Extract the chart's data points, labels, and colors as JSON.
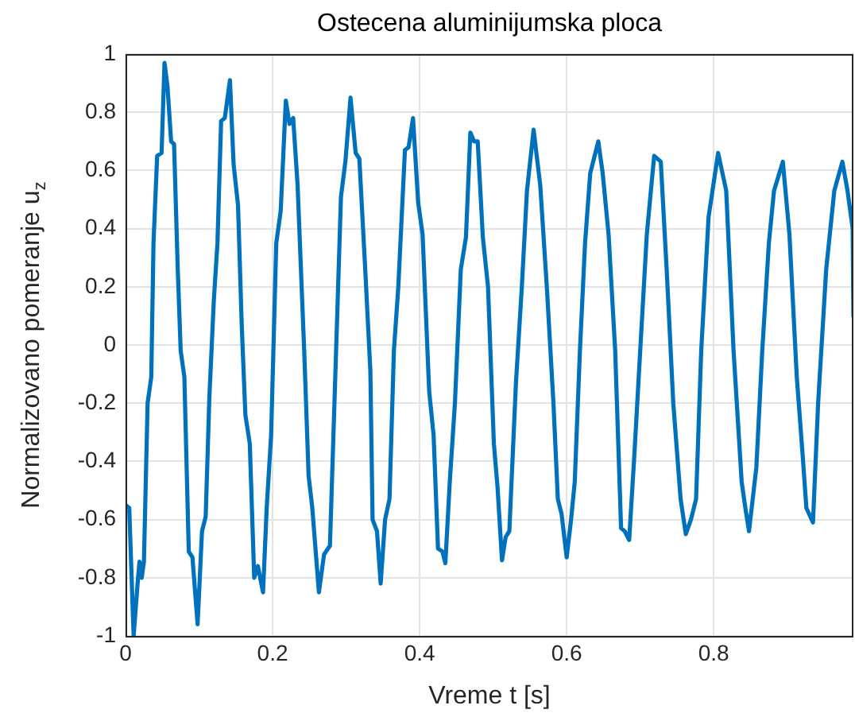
{
  "chart_data": {
    "type": "line",
    "title": "Ostecena aluminijumska ploca",
    "xlabel": "Vreme t [s]",
    "ylabel": "Normalizovano pomeranje u$_{z}$",
    "xlim": [
      0,
      0.99
    ],
    "xticks": [
      0,
      0.2,
      0.4,
      0.6,
      0.8
    ],
    "ylim": [
      -1,
      1
    ],
    "yticks": [
      -1,
      -0.8,
      -0.6,
      -0.4,
      -0.2,
      0,
      0.2,
      0.4,
      0.6,
      0.8,
      1
    ],
    "grid": true,
    "marker": "none",
    "line_style": "solid",
    "series": [
      {
        "color": "#0072bd",
        "x": [
          0,
          0.005,
          0.011,
          0.017,
          0.019,
          0.022,
          0.025,
          0.03,
          0.035,
          0.038,
          0.043,
          0.049,
          0.053,
          0.057,
          0.062,
          0.066,
          0.071,
          0.075,
          0.08,
          0.086,
          0.091,
          0.098,
          0.104,
          0.109,
          0.114,
          0.12,
          0.125,
          0.13,
          0.135,
          0.142,
          0.147,
          0.153,
          0.158,
          0.163,
          0.169,
          0.175,
          0.18,
          0.187,
          0.192,
          0.198,
          0.205,
          0.211,
          0.218,
          0.223,
          0.228,
          0.234,
          0.243,
          0.249,
          0.254,
          0.263,
          0.27,
          0.278,
          0.285,
          0.293,
          0.299,
          0.306,
          0.313,
          0.318,
          0.326,
          0.333,
          0.336,
          0.342,
          0.347,
          0.353,
          0.359,
          0.365,
          0.371,
          0.38,
          0.385,
          0.391,
          0.398,
          0.404,
          0.413,
          0.419,
          0.425,
          0.431,
          0.435,
          0.441,
          0.448,
          0.456,
          0.463,
          0.469,
          0.474,
          0.479,
          0.486,
          0.493,
          0.501,
          0.506,
          0.512,
          0.517,
          0.522,
          0.531,
          0.539,
          0.546,
          0.555,
          0.564,
          0.573,
          0.582,
          0.588,
          0.593,
          0.6,
          0.606,
          0.611,
          0.618,
          0.625,
          0.632,
          0.643,
          0.649,
          0.657,
          0.666,
          0.674,
          0.679,
          0.685,
          0.692,
          0.7,
          0.709,
          0.719,
          0.728,
          0.736,
          0.745,
          0.755,
          0.762,
          0.769,
          0.776,
          0.783,
          0.793,
          0.806,
          0.817,
          0.827,
          0.838,
          0.843,
          0.848,
          0.858,
          0.866,
          0.875,
          0.882,
          0.894,
          0.903,
          0.913,
          0.921,
          0.926,
          0.935,
          0.942,
          0.953,
          0.964,
          0.975,
          0.982,
          0.989,
          0.99
        ],
        "values": [
          -0.55,
          -0.56,
          -1.0,
          -0.8,
          -0.745,
          -0.8,
          -0.745,
          -0.2,
          -0.11,
          0.35,
          0.65,
          0.66,
          0.97,
          0.89,
          0.7,
          0.69,
          0.26,
          -0.02,
          -0.11,
          -0.71,
          -0.73,
          -0.96,
          -0.64,
          -0.59,
          -0.18,
          0.15,
          0.35,
          0.77,
          0.78,
          0.91,
          0.62,
          0.48,
          0.07,
          -0.24,
          -0.34,
          -0.8,
          -0.76,
          -0.85,
          -0.56,
          -0.31,
          0.35,
          0.46,
          0.84,
          0.76,
          0.78,
          0.55,
          -0.02,
          -0.45,
          -0.56,
          -0.85,
          -0.72,
          -0.69,
          -0.13,
          0.51,
          0.63,
          0.85,
          0.66,
          0.64,
          0.26,
          -0.09,
          -0.6,
          -0.64,
          -0.82,
          -0.6,
          -0.53,
          -0.02,
          0.2,
          0.67,
          0.68,
          0.78,
          0.49,
          0.38,
          -0.16,
          -0.31,
          -0.7,
          -0.71,
          -0.75,
          -0.47,
          -0.2,
          0.26,
          0.37,
          0.73,
          0.7,
          0.7,
          0.37,
          0.2,
          -0.34,
          -0.49,
          -0.74,
          -0.66,
          -0.64,
          -0.13,
          0.2,
          0.53,
          0.74,
          0.55,
          0.2,
          -0.2,
          -0.53,
          -0.58,
          -0.73,
          -0.6,
          -0.47,
          -0.02,
          0.35,
          0.59,
          0.7,
          0.59,
          0.38,
          -0.02,
          -0.63,
          -0.64,
          -0.67,
          -0.38,
          -0.02,
          0.38,
          0.65,
          0.63,
          0.26,
          -0.2,
          -0.53,
          -0.65,
          -0.6,
          -0.53,
          -0.02,
          0.44,
          0.66,
          0.53,
          -0.02,
          -0.47,
          -0.56,
          -0.64,
          -0.42,
          -0.02,
          0.35,
          0.53,
          0.63,
          0.38,
          -0.11,
          -0.38,
          -0.56,
          -0.61,
          -0.2,
          0.26,
          0.53,
          0.63,
          0.53,
          0.4,
          0.1
        ]
      }
    ]
  }
}
